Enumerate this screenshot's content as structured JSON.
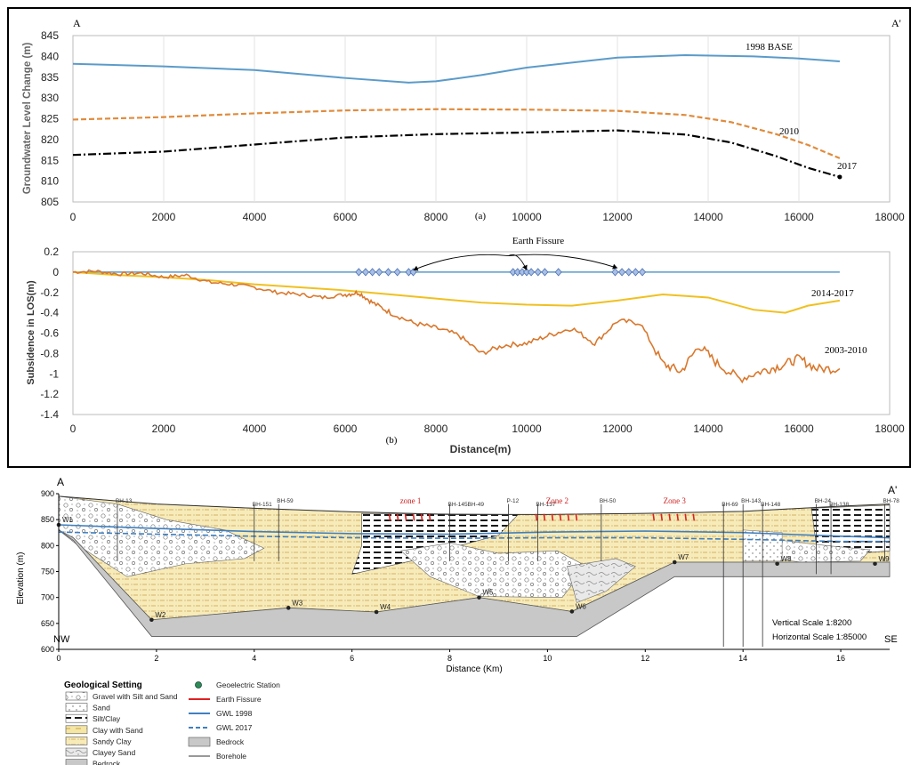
{
  "chart_data": [
    {
      "type": "line",
      "panel": "(a)",
      "corner_left": "A",
      "corner_right": "A'",
      "ylabel": "Groundwater Level Change (m)",
      "xlim": [
        0,
        18000
      ],
      "ylim": [
        805,
        845
      ],
      "xticks": [
        0,
        2000,
        4000,
        6000,
        8000,
        10000,
        12000,
        14000,
        16000,
        18000
      ],
      "yticks": [
        805,
        810,
        815,
        820,
        825,
        830,
        835,
        840,
        845
      ],
      "grid": "vertical",
      "series": [
        {
          "name": "1998 BASE",
          "color": "#5b9bc9",
          "style": "solid",
          "x": [
            0,
            2000,
            4000,
            6000,
            7400,
            8000,
            9000,
            10000,
            12000,
            13500,
            15000,
            16000,
            16900
          ],
          "y": [
            838.2,
            837.6,
            836.7,
            834.8,
            833.7,
            834.0,
            835.5,
            837.3,
            839.7,
            840.3,
            840.0,
            839.5,
            838.8
          ]
        },
        {
          "name": "2010",
          "color": "#e08b3c",
          "style": "dashed",
          "x": [
            0,
            2000,
            4000,
            6000,
            8000,
            10000,
            12000,
            13500,
            14500,
            15500,
            16200,
            16900
          ],
          "y": [
            824.8,
            825.4,
            826.3,
            827.0,
            827.3,
            827.2,
            826.9,
            825.9,
            824.2,
            821.3,
            818.7,
            815.5
          ]
        },
        {
          "name": "2017",
          "color": "#000000",
          "style": "dashdot",
          "x": [
            0,
            2000,
            4000,
            6000,
            8000,
            10000,
            12000,
            13500,
            14500,
            15500,
            16200,
            16900
          ],
          "y": [
            816.3,
            817.1,
            818.8,
            820.5,
            821.3,
            821.7,
            822.2,
            821.2,
            819.3,
            816.0,
            813.2,
            811.0
          ]
        }
      ]
    },
    {
      "type": "line",
      "panel": "(b)",
      "ylabel": "Subsidence  in LOS(m)",
      "xlabel": "Distance(m)",
      "xlim": [
        0,
        18000
      ],
      "ylim": [
        -1.4,
        0.2
      ],
      "xticks": [
        0,
        2000,
        4000,
        6000,
        8000,
        10000,
        12000,
        14000,
        16000,
        18000
      ],
      "yticks": [
        0.2,
        0,
        -0.2,
        -0.4,
        -0.6,
        -0.8,
        -1,
        -1.2,
        -1.4
      ],
      "annotation": "Earth Fissure",
      "fissure_x": [
        6300,
        6450,
        6600,
        6750,
        6950,
        7150,
        7400,
        7500,
        9700,
        9800,
        9900,
        10000,
        10100,
        10250,
        10400,
        10700,
        11950,
        12100,
        12250,
        12400,
        12550
      ],
      "series": [
        {
          "name": "2003-2010",
          "color": "#d9782d",
          "x": [
            0,
            500,
            1000,
            1500,
            2000,
            2500,
            3000,
            3500,
            4000,
            4500,
            5000,
            5500,
            6000,
            6300,
            6600,
            7000,
            7500,
            8000,
            8500,
            9000,
            9500,
            10000,
            10500,
            11000,
            11500,
            12000,
            12500,
            13000,
            13400,
            13800,
            14200,
            14700,
            15200,
            15600,
            16000,
            16400,
            16900
          ],
          "y": [
            0.0,
            0.01,
            -0.02,
            -0.01,
            -0.05,
            -0.03,
            -0.1,
            -0.12,
            -0.15,
            -0.2,
            -0.22,
            -0.25,
            -0.22,
            -0.2,
            -0.3,
            -0.4,
            -0.5,
            -0.55,
            -0.62,
            -0.8,
            -0.72,
            -0.7,
            -0.62,
            -0.55,
            -0.7,
            -0.48,
            -0.5,
            -0.9,
            -0.98,
            -0.72,
            -0.9,
            -1.05,
            -0.97,
            -0.92,
            -0.85,
            -0.95,
            -0.95
          ]
        },
        {
          "name": "2014-2017",
          "color": "#f0c020",
          "x": [
            0,
            1000,
            2000,
            3000,
            4000,
            5000,
            6000,
            7000,
            8000,
            9000,
            10000,
            11000,
            12000,
            13000,
            14000,
            15000,
            15700,
            16200,
            16900
          ],
          "y": [
            0.0,
            -0.03,
            -0.05,
            -0.08,
            -0.12,
            -0.15,
            -0.18,
            -0.22,
            -0.26,
            -0.3,
            -0.32,
            -0.33,
            -0.28,
            -0.22,
            -0.25,
            -0.37,
            -0.4,
            -0.33,
            -0.28
          ]
        },
        {
          "name": "",
          "color": "#5b9bc9",
          "x": [
            0,
            16900
          ],
          "y": [
            0,
            0
          ]
        }
      ]
    },
    {
      "type": "area",
      "corner_left": "A",
      "corner_right": "A'",
      "ylabel": "Elevation (m)",
      "xlabel": "Distance (Km)",
      "xlim": [
        0,
        17
      ],
      "ylim": [
        600,
        900
      ],
      "xticks": [
        0,
        2,
        4,
        6,
        8,
        10,
        12,
        14,
        16
      ],
      "yticks": [
        600,
        650,
        700,
        750,
        800,
        850,
        900
      ],
      "direction_left": "NW",
      "direction_right": "SE",
      "zones": [
        {
          "label": "zone 1",
          "x": 7.2
        },
        {
          "label": "Zone 2",
          "x": 10.2
        },
        {
          "label": "Zone 3",
          "x": 12.6
        }
      ],
      "boreholes": [
        {
          "label": "BH-13",
          "x": 1.2
        },
        {
          "label": "BH-151",
          "x": 4.0
        },
        {
          "label": "BH-59",
          "x": 4.5
        },
        {
          "label": "BH-145BH-49",
          "x": 8.0
        },
        {
          "label": "P-12",
          "x": 9.2
        },
        {
          "label": "BH-137",
          "x": 9.8
        },
        {
          "label": "BH-50",
          "x": 11.1
        },
        {
          "label": "BH-69",
          "x": 13.6
        },
        {
          "label": "BH-143",
          "x": 14.0
        },
        {
          "label": "BH-148",
          "x": 14.4
        },
        {
          "label": "BH-24",
          "x": 15.5
        },
        {
          "label": "BH-138",
          "x": 15.8
        },
        {
          "label": "BH-78",
          "x": 16.9
        }
      ],
      "wells": [
        {
          "label": "W1",
          "x": 0.0,
          "y": 840
        },
        {
          "label": "W2",
          "x": 1.9,
          "y": 657
        },
        {
          "label": "W3",
          "x": 4.7,
          "y": 680
        },
        {
          "label": "W4",
          "x": 6.5,
          "y": 672
        },
        {
          "label": "W5",
          "x": 8.6,
          "y": 700
        },
        {
          "label": "W6",
          "x": 10.5,
          "y": 673
        },
        {
          "label": "W7",
          "x": 12.6,
          "y": 768
        },
        {
          "label": "W8",
          "x": 14.7,
          "y": 765
        },
        {
          "label": "W9",
          "x": 16.7,
          "y": 765
        }
      ],
      "surface": {
        "x": [
          0,
          2,
          4,
          6,
          8,
          10,
          12,
          14,
          16,
          17
        ],
        "y": [
          895,
          880,
          872,
          865,
          860,
          860,
          862,
          866,
          876,
          880
        ]
      },
      "bedrock_top": {
        "x": [
          0,
          0.3,
          1.9,
          4.7,
          6.5,
          8.6,
          10.5,
          12.6,
          17
        ],
        "y": [
          830,
          815,
          657,
          680,
          672,
          700,
          673,
          768,
          768
        ]
      },
      "gwl_1998": {
        "x": [
          0,
          2,
          4,
          6,
          8,
          10,
          12,
          14,
          16,
          17
        ],
        "y": [
          840,
          833,
          827,
          823,
          822,
          826,
          828,
          825,
          818,
          815
        ]
      },
      "gwl_2017": {
        "x": [
          0,
          2,
          4,
          6,
          8,
          10,
          12,
          14,
          16,
          17
        ],
        "y": [
          826,
          822,
          818,
          815,
          814,
          815,
          815,
          812,
          808,
          808
        ]
      },
      "scales": {
        "vertical": "Vertical Scale  1:8200",
        "horizontal": "Horizontal Scale  1:85000"
      },
      "legend": {
        "title": "Geological Setting",
        "geology": [
          "Gravel with Silt and Sand",
          "Sand",
          "Silt/Clay",
          "Clay with Sand",
          "Sandy Clay",
          "Clayey Sand",
          "Bedrock"
        ],
        "symbols": [
          "Geoelectric Station",
          "Earth Fissure",
          "GWL 1998",
          "GWL 2017",
          "Bedrock",
          "Borehole"
        ]
      },
      "colors": {
        "sandy_clay": "#f5e6a6",
        "bedrock": "#c8c8c8",
        "gwl": "#3f7fbf",
        "fissure": "#e02020",
        "geoelectric": "#2e8b57"
      }
    }
  ]
}
